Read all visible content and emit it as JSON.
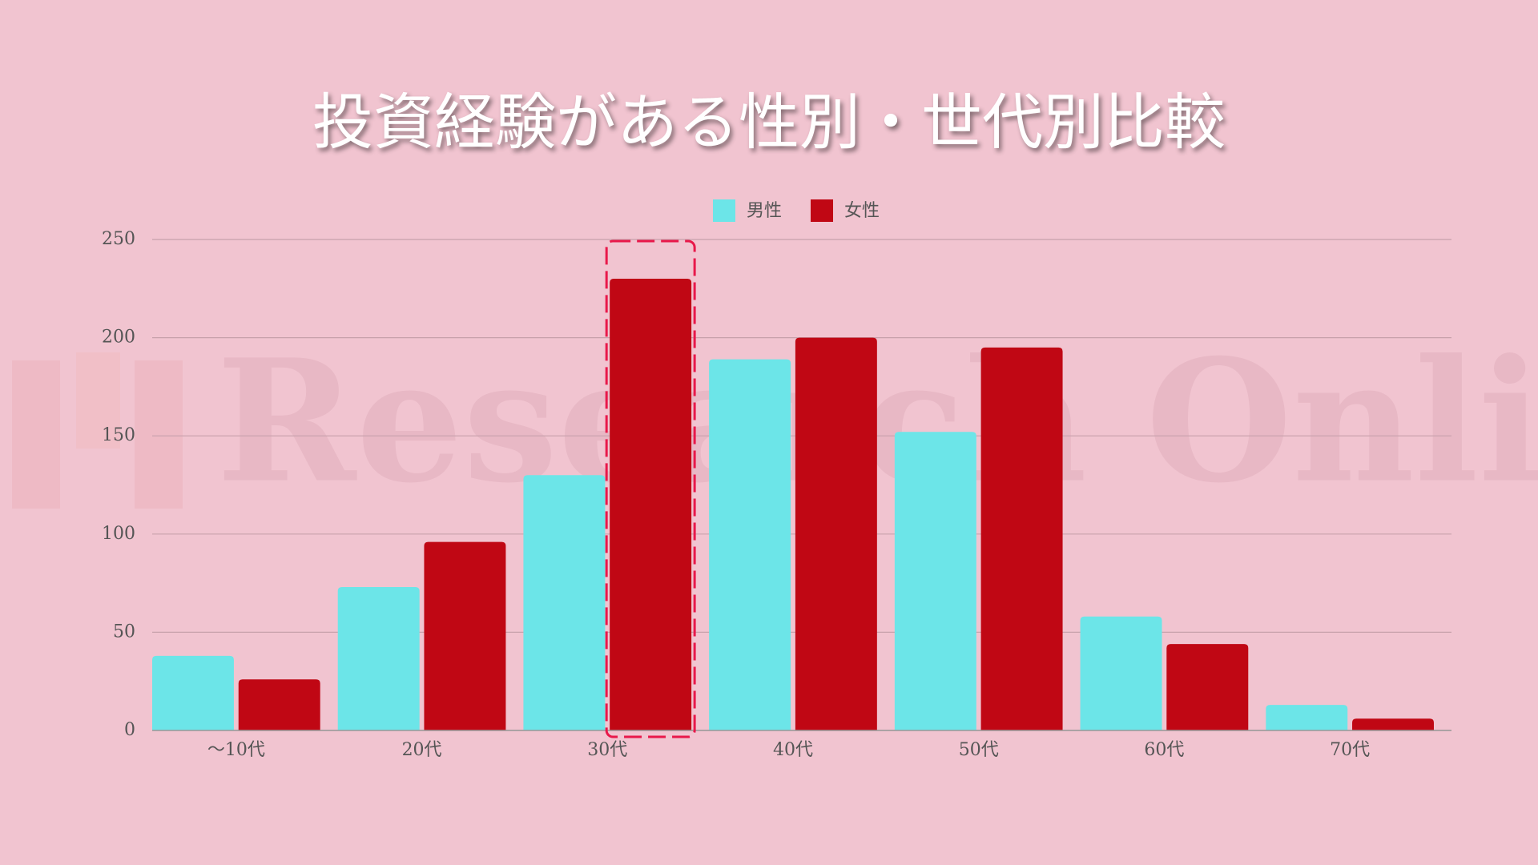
{
  "chart_data": {
    "type": "bar",
    "title": "投資経験がある性別・世代別比較",
    "watermark": "Research Online",
    "categories": [
      "～10代",
      "20代",
      "30代",
      "40代",
      "50代",
      "60代",
      "70代"
    ],
    "series": [
      {
        "name": "男性",
        "color": "#6ce5e8",
        "values": [
          38,
          73,
          130,
          189,
          152,
          58,
          13
        ]
      },
      {
        "name": "女性",
        "color": "#c00714",
        "values": [
          26,
          96,
          230,
          200,
          195,
          44,
          6
        ]
      }
    ],
    "ylim": [
      0,
      250
    ],
    "yticks": [
      0,
      50,
      100,
      150,
      200,
      250
    ],
    "grid": true,
    "legend": "top"
  }
}
